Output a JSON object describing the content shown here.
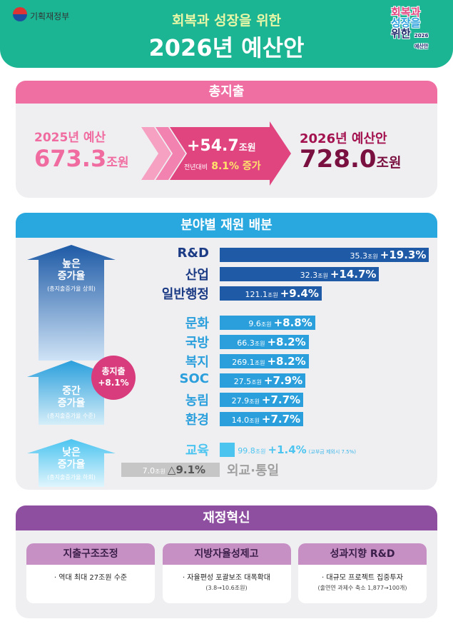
{
  "header": {
    "ministry": "기획재정부",
    "subtitle": "회복과 성장을 위한",
    "title": "2026년 예산안",
    "badge": [
      "회복과",
      "성장을",
      "위한",
      "2026",
      "예산안"
    ]
  },
  "total": {
    "heading": "총지출",
    "prev_label": "2025년 예산",
    "prev_value": "673.3",
    "unit": "조원",
    "change": "+54.7",
    "yoy_label": "전년대비",
    "yoy": "8.1% 증가",
    "next_label": "2026년 예산안",
    "next_value": "728.0"
  },
  "allocation": {
    "heading": "분야별 재원 배분",
    "unit": "조원",
    "groups": [
      {
        "label": "높은\n증가율",
        "note": "(총지출증가율 상회)"
      },
      {
        "label": "중간\n증가율",
        "note": "(총지출증가율 수준)"
      },
      {
        "label": "낮은\n증가율",
        "note": "(총지출증가율 하회)"
      }
    ],
    "average_badge": [
      "총지출",
      "+8.1%"
    ],
    "rows": [
      {
        "name": "R&D",
        "amount": "35.3",
        "rate": 19.3,
        "rate_label": "+19.3%",
        "color": "#1e5aa6"
      },
      {
        "name": "산업",
        "amount": "32.3",
        "rate": 14.7,
        "rate_label": "+14.7%",
        "color": "#1e5aa6"
      },
      {
        "name": "일반행정",
        "amount": "121.1",
        "rate": 9.4,
        "rate_label": "+9.4%",
        "color": "#1e5aa6"
      },
      {
        "name": "문화",
        "amount": "9.6",
        "rate": 8.8,
        "rate_label": "+8.8%",
        "color": "#2a9fdc"
      },
      {
        "name": "국방",
        "amount": "66.3",
        "rate": 8.2,
        "rate_label": "+8.2%",
        "color": "#2a9fdc"
      },
      {
        "name": "복지",
        "amount": "269.1",
        "rate": 8.2,
        "rate_label": "+8.2%",
        "color": "#2a9fdc"
      },
      {
        "name": "SOC",
        "amount": "27.5",
        "rate": 7.9,
        "rate_label": "+7.9%",
        "color": "#2a9fdc"
      },
      {
        "name": "농림",
        "amount": "27.9",
        "rate": 7.7,
        "rate_label": "+7.7%",
        "color": "#2a9fdc"
      },
      {
        "name": "환경",
        "amount": "14.0",
        "rate": 7.7,
        "rate_label": "+7.7%",
        "color": "#2a9fdc"
      },
      {
        "name": "교육",
        "amount": "99.8",
        "rate": 1.4,
        "rate_label": "+1.4%",
        "note": "(교부금 제외시 7.5%)",
        "color": "#4cc4f0"
      },
      {
        "name": "외교·통일",
        "amount": "7.0",
        "rate": -9.1,
        "rate_label": "△9.1%",
        "color": "#c6c6c6"
      }
    ]
  },
  "reform": {
    "heading": "재정혁신",
    "cards": [
      {
        "title": "지출구조조정",
        "text": "· 역대 최대 27조원 수준"
      },
      {
        "title": "지방자율성제고",
        "text": "· 자율편성 포괄보조 대폭확대",
        "note": "(3.8→10.6조원)"
      },
      {
        "title": "성과지향 R&D",
        "text": "· 대규모 프로젝트 집중투자",
        "note": "(출연연 과제수 축소 1,877→100개)"
      }
    ]
  }
}
